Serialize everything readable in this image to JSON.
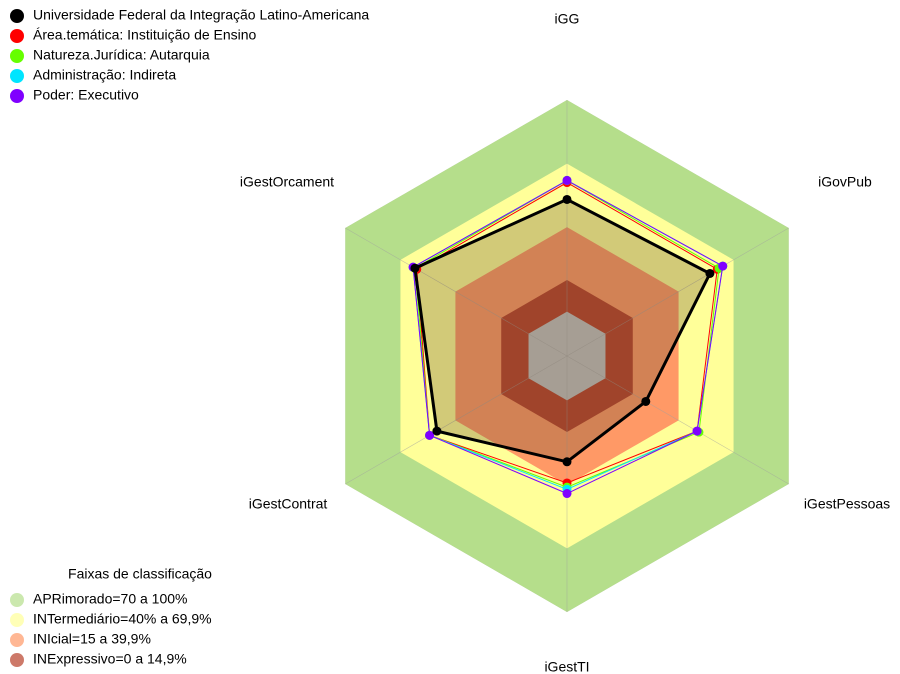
{
  "chart_data": {
    "type": "radar",
    "axes": [
      "iGG",
      "iGovPub",
      "iGestPessoas",
      "iGestTI",
      "iGestContrat",
      "iGestOrcament"
    ],
    "rlim": [
      -21,
      100
    ],
    "series": [
      {
        "name": "Universidade Federal da Integração Latino-Americana",
        "color": "#000000",
        "values": [
          53,
          57,
          22,
          29,
          50,
          62
        ]
      },
      {
        "name": "Área.temática: Instituição de Ensino",
        "color": "#ff0000",
        "values": [
          61,
          61,
          50,
          39,
          54,
          61
        ]
      },
      {
        "name": "Natureza.Jurídica: Autarquia",
        "color": "#66ff00",
        "values": [
          62,
          62,
          51,
          41,
          54,
          62
        ]
      },
      {
        "name": "Administração: Indireta",
        "color": "#00e5ff",
        "values": [
          62,
          64,
          50,
          42,
          54,
          63
        ]
      },
      {
        "name": "Poder: Executivo",
        "color": "#8000ff",
        "values": [
          62,
          64,
          50,
          44,
          54,
          63
        ]
      }
    ],
    "bands_title": "Faixas de classificação",
    "bands": [
      {
        "label": "APRimorado=70 a 100%",
        "color": "#b5de8b",
        "from": 70,
        "to": 100
      },
      {
        "label": "INTermediário=40% a 69,9%",
        "color": "#ffff99",
        "from": 40,
        "to": 69.9
      },
      {
        "label": "INIcial=15 a 39,9%",
        "color": "#ff9966",
        "from": 15,
        "to": 39.9
      },
      {
        "label": "INExpressivo=0 a 14,9%",
        "color": "#b8402a",
        "from": 0,
        "to": 14.9
      }
    ]
  }
}
